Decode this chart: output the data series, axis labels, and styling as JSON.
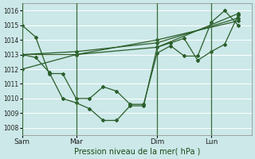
{
  "xlabel": "Pression niveau de la mer( hPa )",
  "bg_color": "#cce8e8",
  "grid_color": "#ffffff",
  "line_color": "#2a5e2a",
  "ylim": [
    1007.5,
    1016.5
  ],
  "yticks": [
    1008,
    1009,
    1010,
    1011,
    1012,
    1013,
    1014,
    1015,
    1016
  ],
  "ytick_labels": [
    "1008",
    "1009",
    "1010",
    "1011",
    "1012",
    "1013",
    "1014",
    "1015",
    "1016"
  ],
  "xtick_labels": [
    "Sam",
    "Mar",
    "Dim",
    "Lun"
  ],
  "vline_x": [
    0,
    4,
    10,
    14
  ],
  "xlim": [
    0,
    17
  ],
  "lines": [
    {
      "x": [
        0,
        1,
        2,
        3,
        4,
        5,
        6,
        7,
        8,
        9,
        10,
        11,
        12,
        13,
        14,
        15,
        16
      ],
      "y": [
        1015.0,
        1014.2,
        1011.7,
        1011.7,
        1010.0,
        1010.0,
        1010.8,
        1010.5,
        1009.6,
        1009.6,
        1013.1,
        1013.6,
        1012.9,
        1012.9,
        1015.2,
        1016.0,
        1015.0
      ]
    },
    {
      "x": [
        0,
        4,
        10,
        16
      ],
      "y": [
        1013.0,
        1013.0,
        1013.5,
        1015.8
      ]
    },
    {
      "x": [
        0,
        4,
        10,
        16
      ],
      "y": [
        1013.0,
        1013.2,
        1013.8,
        1015.5
      ]
    },
    {
      "x": [
        0,
        4,
        10,
        16
      ],
      "y": [
        1012.0,
        1013.0,
        1014.0,
        1015.3
      ]
    },
    {
      "x": [
        0,
        1,
        2,
        3,
        4,
        5,
        6,
        7,
        8,
        9,
        10,
        11,
        12,
        13,
        14,
        15,
        16
      ],
      "y": [
        1013.0,
        1012.8,
        1011.8,
        1010.0,
        1009.7,
        1009.3,
        1008.5,
        1008.5,
        1009.5,
        1009.5,
        1013.5,
        1013.8,
        1014.1,
        1012.6,
        1013.2,
        1013.7,
        1015.7
      ]
    }
  ],
  "vlines": [
    0,
    4,
    10,
    14
  ],
  "marker": "D",
  "markersize": 2.0,
  "linewidth": 0.9
}
